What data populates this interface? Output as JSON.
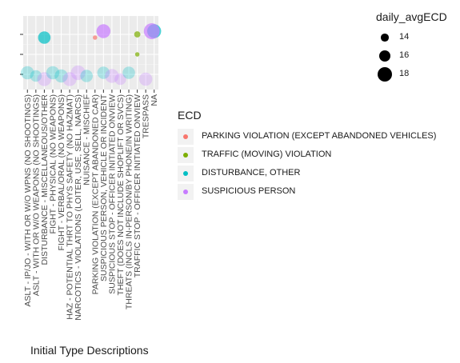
{
  "chart_data": {
    "type": "scatter",
    "title": "",
    "xlabel": "Initial Type Descriptions",
    "ylabel": "",
    "x_categories": [
      "ASLT - IP/JO - WITH OR W/O WPNS (NO SHOOTINGS)",
      "ASLT - WITH OR W/O WEAPONS (NO SHOOTINGS)",
      "DISTURBANCE - MISCELLANEOUS/OTHER",
      "FIGHT - PHYSICAL (NO WEAPONS)",
      "FIGHT - VERBAL/ORAL (NO WEAPONS)",
      "HAZ - POTENTIAL THRT TO PHYS SAFETY (NO HAZMAT)",
      "NARCOTICS - VIOLATIONS (LOITER, USE, SELL, NARCS)",
      "NUISANCE - MISCHIEF",
      "PARKING VIOLATION (EXCEPT ABANDONED CAR)",
      "SUSPICIOUS PERSON, VEHICLE OR INCIDENT",
      "SUSPICIOUS STOP - OFFICER INITIATED ONVIEW",
      "THEFT (DOES NOT INCLUDE SHOPLIFT OR SVCS)",
      "THREATS (INCLS IN-PERSON/BY PHONE/IN WRITING)",
      "TRAFFIC STOP - OFFICER INITIATED ONVIEW",
      "TRESPASS",
      "NA"
    ],
    "y_tick_count": 3,
    "grid": true,
    "legend_placement": "right",
    "size_legend": {
      "title": "daily_avgECD",
      "breaks": [
        14,
        16,
        18
      ]
    },
    "color_legend": {
      "title": "ECD",
      "entries": [
        {
          "label": "PARKING VIOLATION (EXCEPT ABANDONED VEHICLES)",
          "color": "#F8766D"
        },
        {
          "label": "TRAFFIC (MOVING) VIOLATION",
          "color": "#7CAE00"
        },
        {
          "label": "DISTURBANCE, OTHER",
          "color": "#00BFC4"
        },
        {
          "label": "SUSPICIOUS PERSON",
          "color": "#C77CFF"
        }
      ]
    },
    "points": [
      {
        "x": "ASLT - IP/JO - WITH OR W/O WPNS (NO SHOOTINGS)",
        "y": 1,
        "ecd": "DISTURBANCE, OTHER",
        "size": 17
      },
      {
        "x": "ASLT - WITH OR W/O WEAPONS (NO SHOOTINGS)",
        "y": 1,
        "ecd": "DISTURBANCE, OTHER",
        "size": 16
      },
      {
        "x": "DISTURBANCE - MISCELLANEOUS/OTHER",
        "y": 3,
        "ecd": "DISTURBANCE, OTHER",
        "size": 16.5
      },
      {
        "x": "DISTURBANCE - MISCELLANEOUS/OTHER",
        "y": 1,
        "ecd": "SUSPICIOUS PERSON",
        "size": 17.5
      },
      {
        "x": "FIGHT - PHYSICAL (NO WEAPONS)",
        "y": 1,
        "ecd": "DISTURBANCE, OTHER",
        "size": 17
      },
      {
        "x": "FIGHT - VERBAL/ORAL (NO WEAPONS)",
        "y": 1,
        "ecd": "DISTURBANCE, OTHER",
        "size": 17
      },
      {
        "x": "HAZ - POTENTIAL THRT TO PHYS SAFETY (NO HAZMAT)",
        "y": 1,
        "ecd": "SUSPICIOUS PERSON",
        "size": 17.5
      },
      {
        "x": "NARCOTICS - VIOLATIONS (LOITER, USE, SELL, NARCS)",
        "y": 1,
        "ecd": "SUSPICIOUS PERSON",
        "size": 18
      },
      {
        "x": "NUISANCE - MISCHIEF",
        "y": 1,
        "ecd": "DISTURBANCE, OTHER",
        "size": 16.5
      },
      {
        "x": "PARKING VIOLATION (EXCEPT ABANDONED CAR)",
        "y": 3,
        "ecd": "PARKING VIOLATION (EXCEPT ABANDONED VEHICLES)",
        "size": 13
      },
      {
        "x": "SUSPICIOUS PERSON, VEHICLE OR INCIDENT",
        "y": 3,
        "ecd": "SUSPICIOUS PERSON",
        "size": 17.5
      },
      {
        "x": "SUSPICIOUS PERSON, VEHICLE OR INCIDENT",
        "y": 1,
        "ecd": "DISTURBANCE, OTHER",
        "size": 16.5
      },
      {
        "x": "SUSPICIOUS STOP - OFFICER INITIATED ONVIEW",
        "y": 1,
        "ecd": "SUSPICIOUS PERSON",
        "size": 17.5
      },
      {
        "x": "THEFT (DOES NOT INCLUDE SHOPLIFT OR SVCS)",
        "y": 1,
        "ecd": "SUSPICIOUS PERSON",
        "size": 16
      },
      {
        "x": "THREATS (INCLS IN-PERSON/BY PHONE/IN WRITING)",
        "y": 1,
        "ecd": "DISTURBANCE, OTHER",
        "size": 16.5
      },
      {
        "x": "TRAFFIC STOP - OFFICER INITIATED ONVIEW",
        "y": 3,
        "ecd": "TRAFFIC (MOVING) VIOLATION",
        "size": 13.5
      },
      {
        "x": "TRAFFIC STOP - OFFICER INITIATED ONVIEW",
        "y": 2,
        "ecd": "TRAFFIC (MOVING) VIOLATION",
        "size": 13
      },
      {
        "x": "TRESPASS",
        "y": 1,
        "ecd": "SUSPICIOUS PERSON",
        "size": 17
      },
      {
        "x": "NA",
        "y": 3,
        "ecd": "DISTURBANCE, OTHER",
        "size": 17.5
      },
      {
        "x": "NA",
        "y": 3,
        "ecd": "SUSPICIOUS PERSON",
        "size": 19
      }
    ]
  }
}
